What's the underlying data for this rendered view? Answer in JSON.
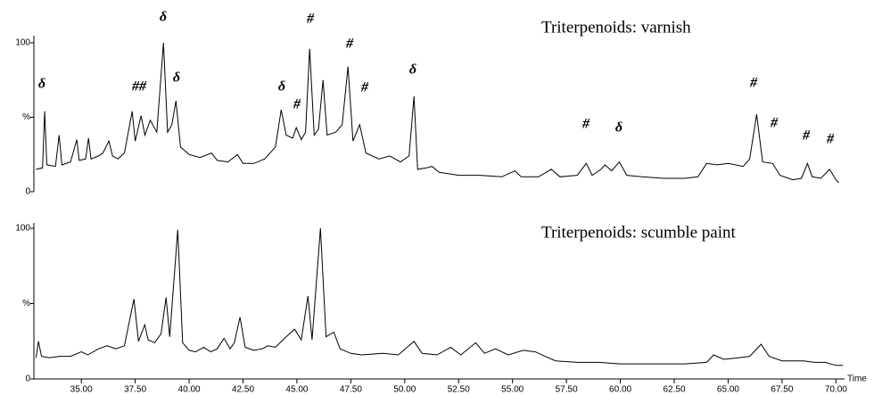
{
  "chart_data": [
    {
      "type": "line",
      "title": "Triterpenoids: varnish",
      "x": [
        32.9,
        33.2,
        33.3,
        33.4,
        33.8,
        33.97,
        34.1,
        34.5,
        34.79,
        34.9,
        35.2,
        35.33,
        35.45,
        35.8,
        36.0,
        36.28,
        36.45,
        36.7,
        37.0,
        37.36,
        37.5,
        37.77,
        37.95,
        38.2,
        38.5,
        38.81,
        39.0,
        39.2,
        39.39,
        39.6,
        40.0,
        40.5,
        41.04,
        41.3,
        41.8,
        42.24,
        42.5,
        43.0,
        43.5,
        44.0,
        44.27,
        44.5,
        44.8,
        44.97,
        45.2,
        45.4,
        45.59,
        45.8,
        46.0,
        46.21,
        46.4,
        46.8,
        47.1,
        47.37,
        47.6,
        47.91,
        48.2,
        48.8,
        49.3,
        49.8,
        50.2,
        50.43,
        50.6,
        51.0,
        51.26,
        51.6,
        52.5,
        53.5,
        54.5,
        55.11,
        55.4,
        56.2,
        56.8,
        57.2,
        58.0,
        58.42,
        58.7,
        59.1,
        59.29,
        59.6,
        59.95,
        60.3,
        61.0,
        62.0,
        63.0,
        63.6,
        64.0,
        64.5,
        65.0,
        65.7,
        66.0,
        66.32,
        66.6,
        67.06,
        67.4,
        68.0,
        68.4,
        68.68,
        68.9,
        69.3,
        69.71,
        70.0,
        70.13
      ],
      "values": [
        15,
        16,
        54,
        18,
        17,
        38,
        18,
        20,
        35,
        21,
        22,
        36,
        22,
        24,
        26,
        34,
        24,
        22,
        26,
        54,
        34,
        51,
        38,
        48,
        40,
        100,
        40,
        45,
        61,
        30,
        25,
        23,
        26,
        21,
        20,
        25,
        19,
        19,
        22,
        30,
        55,
        38,
        36,
        43,
        35,
        40,
        96,
        38,
        42,
        75,
        38,
        40,
        45,
        84,
        34,
        45,
        26,
        22,
        24,
        20,
        24,
        64,
        15,
        16,
        17,
        13,
        11,
        11,
        10,
        14,
        10,
        10,
        15,
        10,
        11,
        19,
        11,
        15,
        18,
        14,
        20,
        11,
        10,
        9,
        9,
        10,
        19,
        18,
        19,
        17,
        22,
        52,
        20,
        19,
        11,
        8,
        9,
        19,
        10,
        9,
        15,
        8,
        6
      ],
      "color": "#000000",
      "xlim": [
        32.8,
        70.4
      ],
      "ylim": [
        0,
        100
      ],
      "yticks": [
        0,
        {
          "value": 50,
          "label": "%"
        },
        100
      ],
      "annotations": [
        "δ",
        "##",
        "δ",
        "δ",
        "δ",
        "#",
        "#",
        "#",
        "#",
        "δ",
        "#",
        "δ",
        "#",
        "#",
        "#",
        "#"
      ]
    },
    {
      "type": "line",
      "title": "Triterpenoids: scumble paint",
      "x": [
        32.9,
        33.01,
        33.15,
        33.5,
        34.0,
        34.5,
        35.0,
        35.3,
        35.8,
        36.2,
        36.6,
        37.0,
        37.44,
        37.65,
        37.94,
        38.1,
        38.4,
        38.7,
        38.93,
        39.1,
        39.47,
        39.7,
        40.0,
        40.3,
        40.67,
        41.0,
        41.3,
        41.62,
        41.9,
        42.1,
        42.36,
        42.6,
        43.0,
        43.4,
        43.65,
        44.0,
        44.5,
        44.89,
        45.2,
        45.51,
        45.7,
        46.09,
        46.35,
        46.71,
        47.0,
        47.5,
        48.0,
        49.0,
        49.7,
        50.43,
        50.8,
        51.5,
        52.13,
        52.6,
        53.29,
        53.7,
        54.2,
        54.8,
        55.5,
        56.06,
        56.5,
        57.0,
        58.0,
        59.0,
        60.0,
        61.0,
        62.0,
        63.0,
        64.0,
        64.33,
        64.8,
        65.5,
        66.0,
        66.53,
        66.9,
        67.5,
        68.5,
        69.0,
        69.5,
        70.0,
        70.33
      ],
      "values": [
        14,
        25,
        15,
        14,
        15,
        15,
        18,
        16,
        20,
        22,
        20,
        22,
        53,
        25,
        36,
        26,
        24,
        30,
        54,
        28,
        99,
        24,
        19,
        18,
        21,
        18,
        20,
        27,
        20,
        24,
        41,
        21,
        19,
        20,
        22,
        21,
        28,
        33,
        26,
        55,
        26,
        100,
        28,
        31,
        20,
        17,
        16,
        17,
        16,
        25,
        17,
        16,
        21,
        16,
        24,
        17,
        20,
        16,
        19,
        18,
        15,
        12,
        11,
        11,
        10,
        10,
        10,
        10,
        11,
        16,
        13,
        14,
        15,
        23,
        15,
        12,
        12,
        11,
        11,
        9,
        9
      ],
      "color": "#000000",
      "xlim": [
        32.8,
        70.4
      ],
      "ylim": [
        0,
        100
      ],
      "yticks": [
        0,
        {
          "value": 50,
          "label": "%"
        },
        100
      ],
      "xlabel": "Time",
      "xticks": [
        {
          "value": 35,
          "label": "35.00"
        },
        {
          "value": 37.5,
          "label": "37.50"
        },
        {
          "value": 40,
          "label": "40.00"
        },
        {
          "value": 42.5,
          "label": "42.50"
        },
        {
          "value": 45,
          "label": "45.00"
        },
        {
          "value": 47.5,
          "label": "47.50"
        },
        {
          "value": 50,
          "label": "50.00"
        },
        {
          "value": 52.5,
          "label": "52.50"
        },
        {
          "value": 55,
          "label": "55.00"
        },
        {
          "value": 57.5,
          "label": "57.50"
        },
        {
          "value": 60,
          "label": "60.00"
        },
        {
          "value": 62.5,
          "label": "62.50"
        },
        {
          "value": 65,
          "label": "65.00"
        },
        {
          "value": 67.5,
          "label": "67.50"
        },
        {
          "value": 70,
          "label": "70.00"
        }
      ]
    }
  ]
}
